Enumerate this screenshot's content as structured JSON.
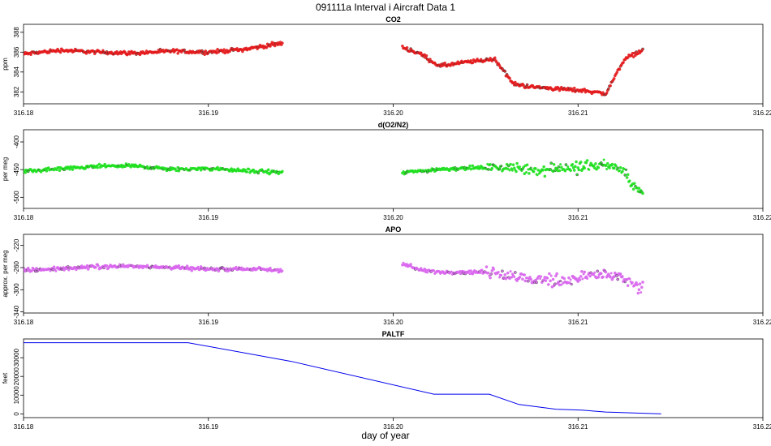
{
  "page": {
    "title": "091111a   Interval i Aircraft Data 1",
    "xlabel": "day of year"
  },
  "chart_data": [
    {
      "type": "scatter",
      "title": "CO2",
      "ylabel": "ppm",
      "xlim": [
        316.18,
        316.22
      ],
      "ylim": [
        380.8,
        388.8
      ],
      "x_ticks": [
        "316.18",
        "316.19",
        "316.20",
        "316.21",
        "316.22"
      ],
      "y_ticks": [
        382,
        384,
        386,
        388
      ],
      "color": "#e41a1c",
      "segments": [
        {
          "x": [
            316.18,
            316.182,
            316.184,
            316.186,
            316.188,
            316.19,
            316.192,
            316.194
          ],
          "y": [
            385.8,
            386.2,
            386.0,
            385.9,
            386.1,
            386.0,
            386.3,
            386.9
          ]
        },
        {
          "x": [
            316.2005,
            316.2015,
            316.2025,
            316.204,
            316.2055,
            316.2065,
            316.2075,
            316.209,
            316.2105,
            316.2115,
            316.2125,
            316.2135
          ],
          "y": [
            386.5,
            385.8,
            384.6,
            385.0,
            385.3,
            382.8,
            382.5,
            382.3,
            382.1,
            381.8,
            385.3,
            386.2
          ]
        }
      ]
    },
    {
      "type": "scatter",
      "title": "d(O2/N2)",
      "ylabel": "per meg",
      "xlim": [
        316.18,
        316.22
      ],
      "ylim": [
        -520,
        -378
      ],
      "x_ticks": [
        "316.18",
        "316.19",
        "316.20",
        "316.21",
        "316.22"
      ],
      "y_ticks": [
        -400,
        -450,
        -500
      ],
      "color": "#1ee01e",
      "segments": [
        {
          "x": [
            316.18,
            316.182,
            316.184,
            316.186,
            316.188,
            316.19,
            316.192,
            316.194
          ],
          "y": [
            -453,
            -449,
            -444,
            -443,
            -450,
            -448,
            -452,
            -455
          ]
        },
        {
          "x": [
            316.2005,
            316.2015,
            316.2025,
            316.204,
            316.2055,
            316.2065,
            316.2075,
            316.209,
            316.2105,
            316.2115,
            316.2125,
            316.2135
          ],
          "y": [
            -455,
            -453,
            -449,
            -447,
            -446,
            -448,
            -450,
            -447,
            -445,
            -440,
            -455,
            -498
          ]
        }
      ]
    },
    {
      "type": "scatter",
      "title": "APO",
      "ylabel": "approx. per meg",
      "xlim": [
        316.18,
        316.22
      ],
      "ylim": [
        -342,
        -200
      ],
      "x_ticks": [
        "316.18",
        "316.19",
        "316.20",
        "316.21",
        "316.22"
      ],
      "y_ticks": [
        -220,
        -260,
        -300,
        -340
      ],
      "color": "#d966ee",
      "segments": [
        {
          "x": [
            316.18,
            316.182,
            316.184,
            316.186,
            316.188,
            316.19,
            316.192,
            316.194
          ],
          "y": [
            -265,
            -262,
            -258,
            -257,
            -260,
            -263,
            -262,
            -265
          ]
        },
        {
          "x": [
            316.2005,
            316.2015,
            316.2025,
            316.204,
            316.2055,
            316.2065,
            316.2075,
            316.209,
            316.2105,
            316.2115,
            316.2125,
            316.2135
          ],
          "y": [
            -252,
            -265,
            -268,
            -268,
            -268,
            -276,
            -282,
            -283,
            -276,
            -270,
            -281,
            -300
          ]
        }
      ]
    },
    {
      "type": "line",
      "title": "PALTF",
      "ylabel": "feet",
      "xlim": [
        316.18,
        316.22
      ],
      "ylim": [
        -2000,
        40000
      ],
      "x_ticks": [
        "316.18",
        "316.19",
        "316.20",
        "316.21",
        "316.22"
      ],
      "y_ticks": [
        0,
        10000,
        20000,
        30000
      ],
      "color": "#0000ee",
      "series": {
        "x": [
          316.18,
          316.1889,
          316.1945,
          316.2022,
          316.2052,
          316.2068,
          316.2088,
          316.2102,
          316.2115,
          316.2145
        ],
        "y": [
          38000,
          38000,
          28000,
          10500,
          10500,
          5000,
          2500,
          2000,
          1000,
          0
        ]
      }
    }
  ]
}
